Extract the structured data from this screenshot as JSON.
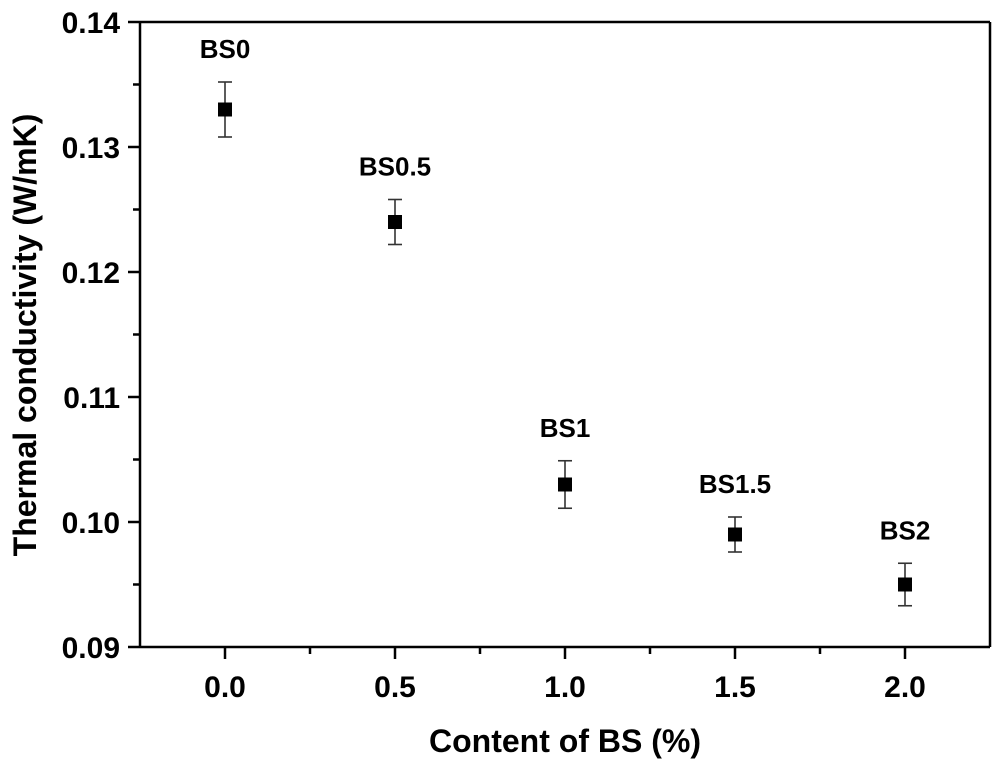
{
  "chart_data": {
    "type": "scatter",
    "title": "",
    "xlabel": "Content of BS (%)",
    "ylabel": "Thermal conductivity (W/mK)",
    "xlim": [
      -0.25,
      2.25
    ],
    "ylim": [
      0.09,
      0.14
    ],
    "x_ticks": [
      "0.0",
      "0.5",
      "1.0",
      "1.5",
      "2.0"
    ],
    "x_tick_values": [
      0.0,
      0.5,
      1.0,
      1.5,
      2.0
    ],
    "y_ticks": [
      "0.09",
      "0.10",
      "0.11",
      "0.12",
      "0.13",
      "0.14"
    ],
    "y_tick_values": [
      0.09,
      0.1,
      0.11,
      0.12,
      0.13,
      0.14
    ],
    "marker": "filled-square",
    "marker_color": "#000000",
    "grid": false,
    "points": [
      {
        "label": "BS0",
        "x": 0.0,
        "y": 0.133,
        "err": 0.0022
      },
      {
        "label": "BS0.5",
        "x": 0.5,
        "y": 0.124,
        "err": 0.0018
      },
      {
        "label": "BS1",
        "x": 1.0,
        "y": 0.103,
        "err": 0.0019
      },
      {
        "label": "BS1.5",
        "x": 1.5,
        "y": 0.099,
        "err": 0.0014
      },
      {
        "label": "BS2",
        "x": 2.0,
        "y": 0.095,
        "err": 0.0017
      }
    ]
  }
}
